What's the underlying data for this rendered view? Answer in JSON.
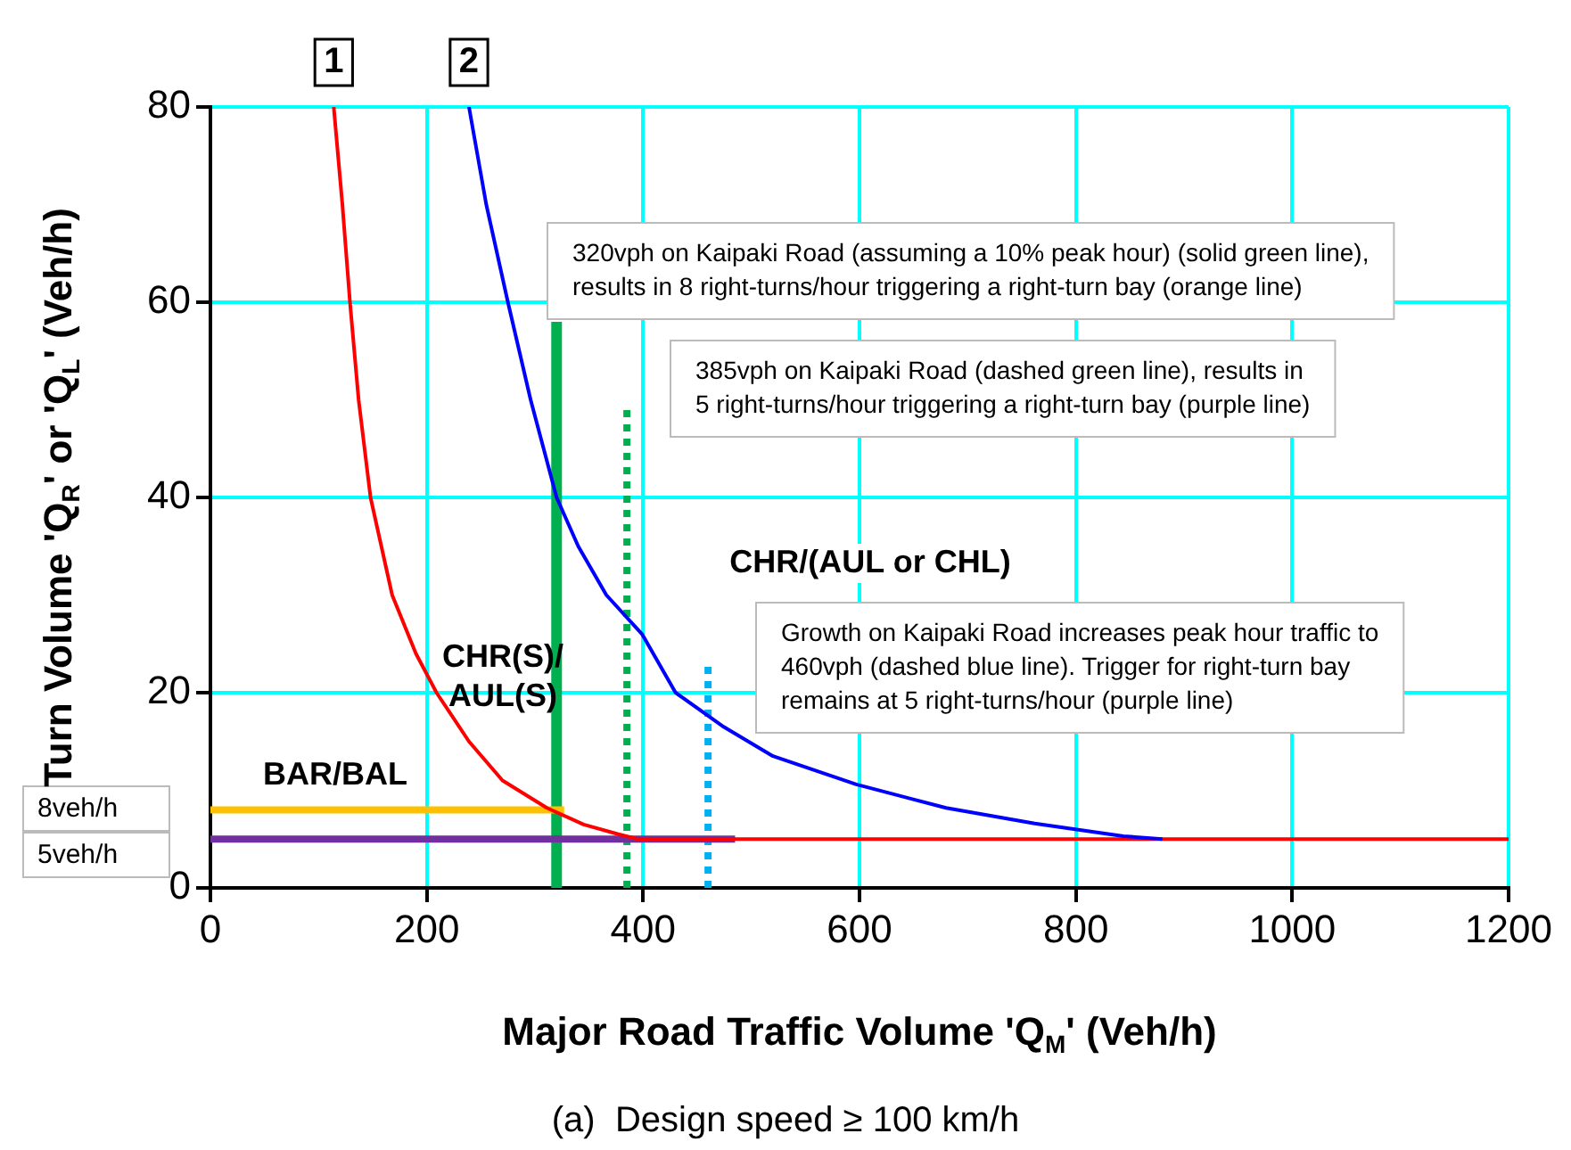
{
  "chart_data": {
    "type": "line",
    "xlabel": "Major Road Traffic Volume 'Q$_{M}$' (Veh/h)",
    "ylabel": "Turn Volume 'Q$_{R}$' or 'Q$_{L}$' (Veh/h)",
    "xlim": [
      0,
      1200
    ],
    "xticks": [
      0,
      200,
      400,
      600,
      800,
      1000,
      1200
    ],
    "ylim": [
      0,
      80
    ],
    "yticks": [
      0,
      20,
      40,
      60,
      80
    ],
    "grid": true,
    "marker": "none",
    "series": [
      {
        "name": "1",
        "color": "#ff0000",
        "x": [
          114,
          122,
          129,
          137,
          148,
          168,
          190,
          209,
          239,
          270,
          311,
          345,
          377,
          395,
          1200
        ],
        "values": [
          80,
          70,
          60,
          50,
          40,
          30,
          24,
          20,
          15,
          11,
          8.2,
          6.5,
          5.5,
          5,
          5
        ]
      },
      {
        "name": "2",
        "color": "#0000ff",
        "x": [
          239,
          255,
          275,
          296,
          320,
          340,
          366,
          399,
          430,
          473,
          520,
          597,
          680,
          762,
          844,
          880
        ],
        "values": [
          80,
          70,
          60,
          50,
          40,
          35,
          30,
          26,
          20,
          16.6,
          13.5,
          10.6,
          8.2,
          6.6,
          5.3,
          5
        ]
      },
      {
        "color": "#ffc000",
        "x": [
          0,
          327
        ],
        "values": [
          8,
          8
        ]
      },
      {
        "color": "#7030a0",
        "x": [
          0,
          485
        ],
        "values": [
          5,
          5
        ]
      },
      {
        "color": "#00b050",
        "x": [
          320,
          320
        ],
        "values": [
          0,
          58
        ]
      },
      {
        "color": "#00b050",
        "line_style": "dotted",
        "x": [
          385,
          385
        ],
        "values": [
          0,
          49
        ]
      },
      {
        "color": "#00b0f0",
        "line_style": "dotted",
        "x": [
          460,
          460
        ],
        "values": [
          0,
          23
        ]
      }
    ],
    "annotations": [
      "BAR/BAL",
      "CHR(S)/\nAUL(S)",
      "CHR/(AUL or CHL)",
      "320vph on Kaipaki Road (assuming a 10% peak hour) (solid green line),\nresults in 8 right-turns/hour triggering a right-turn bay (orange line)",
      "385vph on Kaipaki Road (dashed green line), results in\n5 right-turns/hour triggering a right-turn bay (purple line)",
      "Growth on Kaipaki Road increases peak hour traffic to\n460vph (dashed blue line). Trigger for right-turn bay\nremains at 5 right-turns/hour (purple line)",
      "8veh/h",
      "5veh/h",
      "(a)  Design speed ≥ 100 km/h"
    ]
  }
}
